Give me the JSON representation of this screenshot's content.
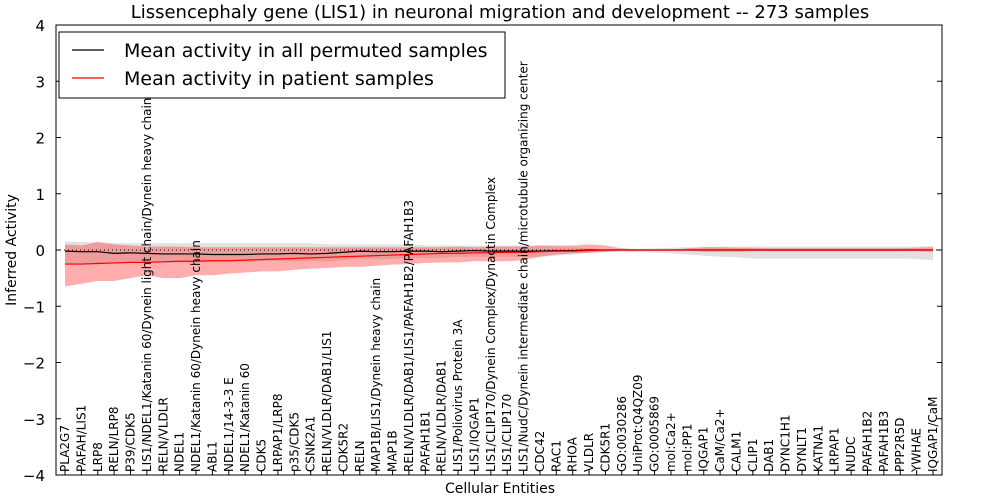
{
  "chart_data": {
    "type": "line",
    "title": "Lissencephaly gene (LIS1) in neuronal migration and development -- 273 samples",
    "xlabel": "Cellular Entities",
    "ylabel": "Inferred Activity",
    "ylim": [
      -4,
      4
    ],
    "yticks": [
      4,
      3,
      2,
      1,
      0,
      -1,
      -2,
      -3,
      -4
    ],
    "ytick_labels": [
      "4",
      "3",
      "2",
      "1",
      "0",
      "−1",
      "−2",
      "−3",
      "−4"
    ],
    "legend_position": "top-left",
    "categories": [
      "PLA2G7",
      "PAFAH/LIS1",
      "LRP8",
      "RELN/LRP8",
      "P39/CDK5",
      "LIS1/NDEL1/Katanin 60/Dynein light chain/Dynein heavy chain",
      "RELN/VLDLR",
      "NDEL1",
      "NDEL1/Katanin 60/Dynein heavy chain",
      "ABL1",
      "NDEL1/14-3-3 E",
      "NDEL1/Katanin 60",
      "CDK5",
      "LRPAP1/LRP8",
      "p35/CDK5",
      "CSNK2A1",
      "RELN/VLDLR/DAB1/LIS1",
      "CDK5R2",
      "RELN",
      "MAP1B/LIS1/Dynein heavy chain",
      "MAP1B",
      "RELN/VLDLR/DAB1/LIS1/PAFAH1B2/PAFAH1B3",
      "PAFAH1B1",
      "RELN/VLDLR/DAB1",
      "LIS1/Poliovirus Protein 3A",
      "LIS1/IQGAP1",
      "LIS1/CLIP170/Dynein Complex/Dynactin Complex",
      "LIS1/CLIP170",
      "LIS1/NudC/Dynein intermediate chain/microtubule organizing center",
      "CDC42",
      "RAC1",
      "RHOA",
      "VLDLR",
      "CDK5R1",
      "GO:0030286",
      "UniProt:Q4QZ09",
      "GO:0005869",
      "mol:Ca2+",
      "mol:PP1",
      "IQGAP1",
      "CaM/Ca2+",
      "CALM1",
      "CLIP1",
      "DAB1",
      "DYNC1H1",
      "DYNLT1",
      "KATNA1",
      "LRPAP1",
      "NUDC",
      "PAFAH1B2",
      "PAFAH1B3",
      "PPP2R5D",
      "YWHAE",
      "IQGAP1/CaM"
    ],
    "series": [
      {
        "name": "Mean activity in all permuted samples",
        "color": "#000000",
        "values": [
          -0.02,
          -0.03,
          -0.03,
          -0.06,
          -0.05,
          -0.06,
          -0.07,
          -0.07,
          -0.07,
          -0.08,
          -0.08,
          -0.08,
          -0.07,
          -0.07,
          -0.06,
          -0.07,
          -0.06,
          -0.04,
          -0.02,
          -0.03,
          -0.03,
          -0.02,
          -0.02,
          -0.03,
          -0.02,
          -0.01,
          -0.02,
          -0.02,
          -0.02,
          -0.02,
          -0.01,
          -0.01,
          0.0,
          0.0,
          0.0,
          0.0,
          0.0,
          0.0,
          0.0,
          0.0,
          0.0,
          0.0,
          0.0,
          0.0,
          0.0,
          0.0,
          0.0,
          0.0,
          0.0,
          0.0,
          0.0,
          0.0,
          0.0,
          0.0
        ],
        "lower": [
          -0.25,
          -0.25,
          -0.25,
          -0.22,
          -0.22,
          -0.22,
          -0.22,
          -0.22,
          -0.22,
          -0.22,
          -0.22,
          -0.22,
          -0.2,
          -0.2,
          -0.2,
          -0.2,
          -0.2,
          -0.18,
          -0.15,
          -0.16,
          -0.16,
          -0.14,
          -0.14,
          -0.14,
          -0.12,
          -0.12,
          -0.12,
          -0.12,
          -0.12,
          -0.12,
          -0.1,
          -0.08,
          -0.05,
          -0.04,
          -0.03,
          -0.04,
          -0.05,
          -0.06,
          -0.08,
          -0.1,
          -0.12,
          -0.13,
          -0.15,
          -0.15,
          -0.15,
          -0.15,
          -0.15,
          -0.15,
          -0.15,
          -0.15,
          -0.15,
          -0.15,
          -0.16,
          -0.18
        ],
        "upper": [
          0.15,
          0.14,
          0.14,
          0.12,
          0.12,
          0.12,
          0.12,
          0.12,
          0.12,
          0.12,
          0.12,
          0.12,
          0.12,
          0.12,
          0.12,
          0.12,
          0.1,
          0.1,
          0.1,
          0.1,
          0.1,
          0.1,
          0.08,
          0.08,
          0.08,
          0.08,
          0.08,
          0.08,
          0.08,
          0.08,
          0.06,
          0.05,
          0.03,
          0.02,
          0.02,
          0.02,
          0.03,
          0.04,
          0.05,
          0.05,
          0.06,
          0.06,
          0.06,
          0.06,
          0.06,
          0.06,
          0.06,
          0.06,
          0.06,
          0.06,
          0.06,
          0.06,
          0.06,
          0.07
        ]
      },
      {
        "name": "Mean activity in patient samples",
        "color": "#ff0000",
        "values": [
          -0.25,
          -0.25,
          -0.24,
          -0.23,
          -0.22,
          -0.22,
          -0.21,
          -0.2,
          -0.2,
          -0.19,
          -0.19,
          -0.18,
          -0.17,
          -0.16,
          -0.15,
          -0.14,
          -0.13,
          -0.12,
          -0.11,
          -0.1,
          -0.09,
          -0.08,
          -0.07,
          -0.06,
          -0.06,
          -0.05,
          -0.05,
          -0.04,
          -0.04,
          -0.03,
          -0.02,
          -0.02,
          -0.01,
          0.0,
          0.0,
          0.0,
          0.0,
          0.0,
          0.0,
          0.0,
          0.0,
          0.0,
          0.0,
          0.0,
          0.0,
          0.0,
          0.0,
          0.0,
          0.0,
          0.0,
          0.0,
          0.0,
          0.0,
          0.0
        ],
        "lower": [
          -0.65,
          -0.6,
          -0.55,
          -0.55,
          -0.5,
          -0.45,
          -0.5,
          -0.5,
          -0.45,
          -0.45,
          -0.42,
          -0.4,
          -0.38,
          -0.38,
          -0.35,
          -0.33,
          -0.32,
          -0.3,
          -0.3,
          -0.28,
          -0.26,
          -0.25,
          -0.23,
          -0.22,
          -0.22,
          -0.2,
          -0.2,
          -0.2,
          -0.18,
          -0.12,
          -0.08,
          -0.06,
          -0.05,
          -0.03,
          -0.01,
          0.0,
          0.0,
          0.0,
          -0.01,
          -0.03,
          -0.03,
          -0.03,
          -0.02,
          -0.02,
          -0.02,
          -0.02,
          -0.02,
          -0.02,
          -0.02,
          -0.02,
          -0.02,
          -0.02,
          -0.02,
          -0.03
        ],
        "upper": [
          0.1,
          0.08,
          0.14,
          0.1,
          0.08,
          0.06,
          0.06,
          0.06,
          0.05,
          0.05,
          0.05,
          0.05,
          0.05,
          0.05,
          0.05,
          0.05,
          0.05,
          0.05,
          0.05,
          0.05,
          0.05,
          0.05,
          0.05,
          0.05,
          0.06,
          0.05,
          0.06,
          0.06,
          0.06,
          0.08,
          0.08,
          0.08,
          0.1,
          0.08,
          0.03,
          0.01,
          0.0,
          0.0,
          0.03,
          0.05,
          0.05,
          0.04,
          0.04,
          0.03,
          0.03,
          0.03,
          0.03,
          0.03,
          0.03,
          0.03,
          0.03,
          0.03,
          0.04,
          0.05
        ]
      }
    ]
  }
}
